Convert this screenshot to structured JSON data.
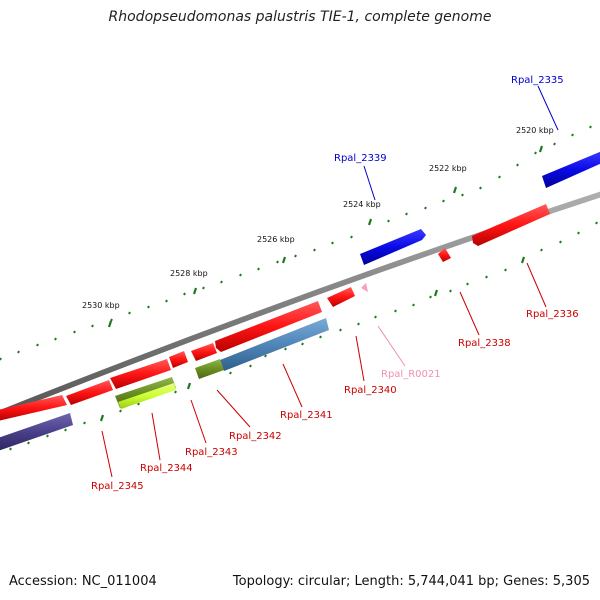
{
  "title": "Rhodopseudomonas palustris TIE-1, complete genome",
  "accession": "Accession: NC_011004",
  "topology": "Topology: circular; Length: 5,744,041 bp; Genes: 5,305",
  "kbp_labels": [
    "2520 kbp",
    "2522 kbp",
    "2524 kbp",
    "2526 kbp",
    "2528 kbp",
    "2530 kbp"
  ],
  "colors": {
    "backbone": "#8a8a8a",
    "tick": "#1f7a1f",
    "red_gene": "#ff1a1a",
    "blue_gene": "#1414e6",
    "steelblue_gene": "#4f86b8",
    "olive_gene": "#6b8e23",
    "lime_gene": "#ccff33",
    "slate_gene": "#4a3f8a",
    "pink_rna": "#f4a0c0",
    "label_red": "#cc0000",
    "label_blue": "#0000cc",
    "label_pink": "#f090b0"
  },
  "genes": [
    {
      "name": "Rpal_2335",
      "color": "label_blue"
    },
    {
      "name": "Rpal_2336",
      "color": "label_red"
    },
    {
      "name": "Rpal_2338",
      "color": "label_red"
    },
    {
      "name": "Rpal_2339",
      "color": "label_blue"
    },
    {
      "name": "Rpal_R0021",
      "color": "label_pink"
    },
    {
      "name": "Rpal_2340",
      "color": "label_red"
    },
    {
      "name": "Rpal_2341",
      "color": "label_red"
    },
    {
      "name": "Rpal_2342",
      "color": "label_red"
    },
    {
      "name": "Rpal_2343",
      "color": "label_red"
    },
    {
      "name": "Rpal_2344",
      "color": "label_red"
    },
    {
      "name": "Rpal_2345",
      "color": "label_red"
    }
  ]
}
